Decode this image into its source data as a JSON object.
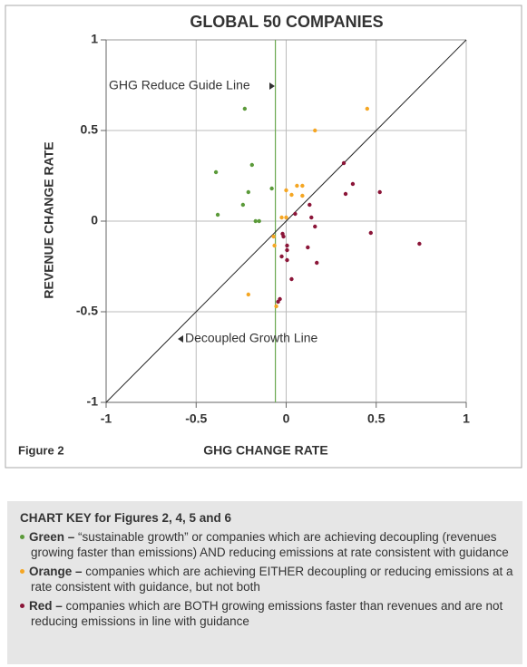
{
  "chart_data": {
    "type": "scatter",
    "title": "GLOBAL 50 COMPANIES",
    "figure_label": "Figure 2",
    "xlabel": "GHG CHANGE RATE",
    "ylabel": "REVENUE CHANGE RATE",
    "xlim": [
      -1,
      1
    ],
    "ylim": [
      -1,
      1
    ],
    "xticks": [
      -1,
      -0.5,
      0,
      0.5,
      1
    ],
    "yticks": [
      -1,
      -0.5,
      0,
      0.5,
      1
    ],
    "grid": true,
    "guide_x": -0.06,
    "guide_color": "#6aa84f",
    "annotations": [
      "GHG Reduce Guide Line",
      "Decoupled Growth Line"
    ],
    "series": [
      {
        "color": "#5b9a3a",
        "x": [
          -0.23,
          -0.39,
          -0.19,
          -0.21,
          -0.24,
          -0.38,
          -0.17,
          -0.15,
          -0.08
        ],
        "values": [
          0.62,
          0.27,
          0.31,
          0.16,
          0.09,
          0.035,
          0,
          0,
          0.18
        ]
      },
      {
        "color": "#f5a623",
        "x": [
          0.45,
          0.16,
          0.0,
          0.06,
          0.09,
          0.09,
          0.03,
          -0.025,
          0.0,
          -0.07,
          -0.065,
          -0.21,
          -0.055
        ],
        "values": [
          0.62,
          0.5,
          0.17,
          0.195,
          0.195,
          0.14,
          0.145,
          0.02,
          0.02,
          -0.085,
          -0.135,
          -0.405,
          -0.47
        ]
      },
      {
        "color": "#8b1538",
        "x": [
          0.32,
          0.37,
          0.33,
          0.52,
          0.13,
          0.05,
          0.14,
          0.16,
          0.47,
          0.74,
          0.12,
          0.17,
          -0.02,
          -0.015,
          0.005,
          0.005,
          0.005,
          -0.025,
          0.03,
          -0.035,
          -0.045
        ],
        "values": [
          0.32,
          0.205,
          0.15,
          0.16,
          0.09,
          0.04,
          0.02,
          -0.03,
          -0.065,
          -0.125,
          -0.145,
          -0.23,
          -0.07,
          -0.085,
          -0.135,
          -0.16,
          -0.215,
          -0.195,
          -0.32,
          -0.43,
          -0.445
        ]
      }
    ]
  },
  "key": {
    "title": "CHART KEY for Figures 2, 4, 5 and 6",
    "items": [
      {
        "label": "Green –",
        "text": "“sustainable growth” or companies which are achieving decoupling (revenues growing faster than emissions) AND reducing emissions at rate consistent with guidance",
        "color": "#5b9a3a"
      },
      {
        "label": "Orange –",
        "text": "companies which are achieving EITHER decoupling or reducing emissions at a rate consistent with guidance, but not both",
        "color": "#f5a623"
      },
      {
        "label": "Red –",
        "text": "companies which are BOTH growing emissions faster than revenues and are not reducing emissions in line with guidance",
        "color": "#8b1538"
      }
    ]
  }
}
